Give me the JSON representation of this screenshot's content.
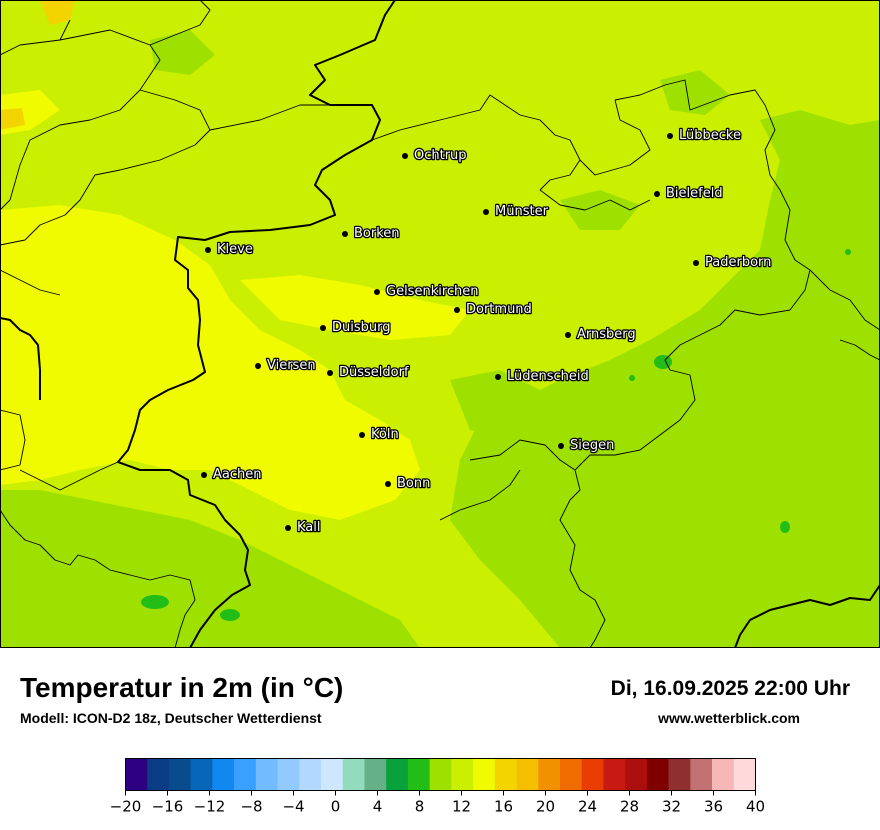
{
  "map": {
    "title": "Temperatur in 2m (in °C)",
    "model": "Modell: ICON-D2 18z, Deutscher Wetterdienst",
    "datetime": "Di, 16.09.2025 22:00 Uhr",
    "website": "www.wetterblick.com",
    "cities": [
      {
        "name": "Lübbecke"
      },
      {
        "name": "Ochtrup"
      },
      {
        "name": "Bielefeld"
      },
      {
        "name": "Münster"
      },
      {
        "name": "Borken"
      },
      {
        "name": "Kleve"
      },
      {
        "name": "Paderborn"
      },
      {
        "name": "Gelsenkirchen"
      },
      {
        "name": "Dortmund"
      },
      {
        "name": "Duisburg"
      },
      {
        "name": "Arnsberg"
      },
      {
        "name": "Viersen"
      },
      {
        "name": "Düsseldorf"
      },
      {
        "name": "Lüdenscheid"
      },
      {
        "name": "Köln"
      },
      {
        "name": "Siegen"
      },
      {
        "name": "Aachen"
      },
      {
        "name": "Bonn"
      },
      {
        "name": "Kall"
      }
    ],
    "colors": {
      "field_base": "#cbef00",
      "field_green": "#9ee000",
      "field_yellow": "#f0fb00",
      "field_dark_green": "#22bd16",
      "field_orange": "#f4d400",
      "border": "#000000"
    }
  },
  "legend": {
    "colors": [
      "#2d0082",
      "#0b3d86",
      "#084c8e",
      "#0866b8",
      "#1187f0",
      "#3aa0ff",
      "#72bbff",
      "#92c9ff",
      "#b2d8ff",
      "#cfe6ff",
      "#92dcbd",
      "#66b088",
      "#08a13c",
      "#22bd16",
      "#9ee000",
      "#cbef00",
      "#f0fb00",
      "#f4d400",
      "#f4bf00",
      "#f19100",
      "#f06c00",
      "#e93c00",
      "#c81912",
      "#ad0e0e",
      "#800000",
      "#8f2f2f",
      "#c27272",
      "#f7b7b7",
      "#ffdada"
    ],
    "ticks": [
      "−20",
      "−16",
      "−12",
      "−8",
      "−4",
      "0",
      "4",
      "8",
      "12",
      "16",
      "20",
      "24",
      "28",
      "32",
      "36",
      "40"
    ]
  }
}
